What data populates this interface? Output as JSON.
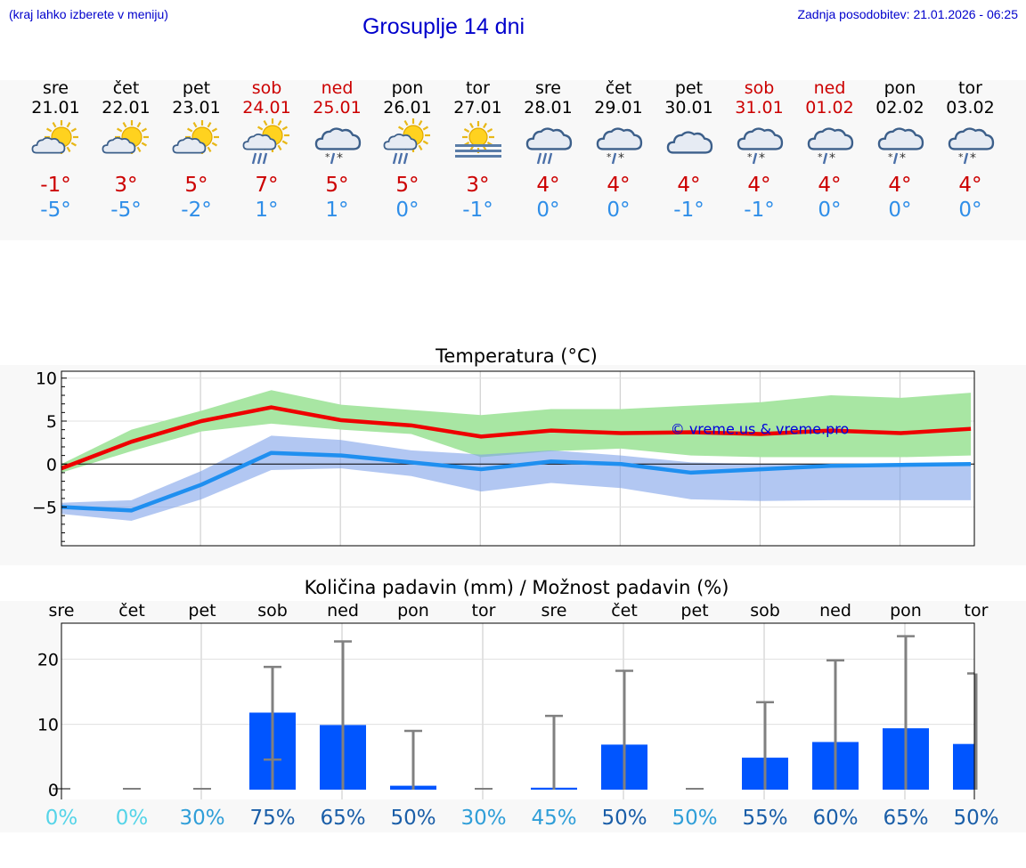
{
  "header": {
    "note": "(kraj lahko izberete v meniju)",
    "title": "Grosuplje 14 dni",
    "updated": "Zadnja posodobitev: 21.01.2026 - 06:25"
  },
  "days": [
    {
      "name": "sre",
      "date": "21.01",
      "max": "-1°",
      "min": "-5°",
      "icon": "sun-cloud",
      "weekend": false
    },
    {
      "name": "čet",
      "date": "22.01",
      "max": "3°",
      "min": "-5°",
      "icon": "sun-cloud",
      "weekend": false
    },
    {
      "name": "pet",
      "date": "23.01",
      "max": "5°",
      "min": "-2°",
      "icon": "sun-cloud",
      "weekend": false
    },
    {
      "name": "sob",
      "date": "24.01",
      "max": "7°",
      "min": "1°",
      "icon": "sun-cloud-rain",
      "weekend": true
    },
    {
      "name": "ned",
      "date": "25.01",
      "max": "5°",
      "min": "1°",
      "icon": "cloud-sleet",
      "weekend": true
    },
    {
      "name": "pon",
      "date": "26.01",
      "max": "5°",
      "min": "0°",
      "icon": "sun-cloud-rain",
      "weekend": false
    },
    {
      "name": "tor",
      "date": "27.01",
      "max": "3°",
      "min": "-1°",
      "icon": "sun-fog",
      "weekend": false
    },
    {
      "name": "sre",
      "date": "28.01",
      "max": "4°",
      "min": "0°",
      "icon": "cloud-rain",
      "weekend": false
    },
    {
      "name": "čet",
      "date": "29.01",
      "max": "4°",
      "min": "0°",
      "icon": "cloud-sleet",
      "weekend": false
    },
    {
      "name": "pet",
      "date": "30.01",
      "max": "4°",
      "min": "-1°",
      "icon": "cloud",
      "weekend": false
    },
    {
      "name": "sob",
      "date": "31.01",
      "max": "4°",
      "min": "-1°",
      "icon": "cloud-sleet",
      "weekend": true
    },
    {
      "name": "ned",
      "date": "01.02",
      "max": "4°",
      "min": "0°",
      "icon": "cloud-sleet",
      "weekend": true
    },
    {
      "name": "pon",
      "date": "02.02",
      "max": "4°",
      "min": "0°",
      "icon": "cloud-sleet",
      "weekend": false
    },
    {
      "name": "tor",
      "date": "03.02",
      "max": "4°",
      "min": "0°",
      "icon": "cloud-sleet",
      "weekend": false
    }
  ],
  "colors": {
    "max": "#cc0000",
    "min": "#2f8ee8",
    "maxLine": "#ee0000",
    "minLine": "#1f8ff0",
    "maxBand": "#a8e6a3",
    "minBand": "#a8c2f0",
    "overlap": "#7ec8a8",
    "bar": "#0055ff",
    "whisker": "#808080"
  },
  "chart_data": [
    {
      "type": "line",
      "title": "Temperatura (°C)",
      "watermark": "© vreme.us & vreme.pro",
      "x": [
        0,
        1,
        2,
        3,
        4,
        5,
        6,
        7,
        8,
        9,
        10,
        11,
        12,
        13
      ],
      "ylim": [
        -9.5,
        10.8
      ],
      "yticks": [
        10,
        5,
        0,
        -5
      ],
      "yticklabels": [
        "10",
        "5",
        "0",
        "−5"
      ],
      "series": [
        {
          "name": "max",
          "values": [
            -0.5,
            2.6,
            5.0,
            6.6,
            5.1,
            4.5,
            3.2,
            3.9,
            3.6,
            3.7,
            3.5,
            3.9,
            3.6,
            4.1
          ],
          "band_low": [
            -1.0,
            1.5,
            3.8,
            4.7,
            4.0,
            3.5,
            0.8,
            1.5,
            1.8,
            1.0,
            0.8,
            0.8,
            0.8,
            1.0
          ],
          "band_high": [
            0.0,
            4.0,
            6.2,
            8.6,
            6.9,
            6.3,
            5.7,
            6.4,
            6.4,
            6.8,
            7.2,
            8.0,
            7.7,
            8.3
          ]
        },
        {
          "name": "min",
          "values": [
            -5.0,
            -5.4,
            -2.4,
            1.3,
            1.0,
            0.2,
            -0.6,
            0.3,
            0.0,
            -1.0,
            -0.6,
            -0.2,
            -0.1,
            0.0
          ],
          "band_low": [
            -5.8,
            -6.6,
            -4.1,
            -0.7,
            -0.5,
            -1.4,
            -3.2,
            -2.2,
            -2.8,
            -4.1,
            -4.3,
            -4.2,
            -4.2,
            -4.2
          ],
          "band_high": [
            -4.5,
            -4.2,
            -0.8,
            3.3,
            2.8,
            1.6,
            1.1,
            1.6,
            1.0,
            0.2,
            0.0,
            0.0,
            0.0,
            0.0
          ]
        }
      ]
    },
    {
      "type": "bar",
      "title": "Količina padavin (mm) / Možnost padavin (%)",
      "categories": [
        "sre",
        "čet",
        "pet",
        "sob",
        "ned",
        "pon",
        "tor",
        "sre",
        "čet",
        "pet",
        "sob",
        "ned",
        "pon",
        "tor"
      ],
      "values": [
        0,
        0,
        0,
        11.8,
        9.9,
        0.6,
        0,
        0.3,
        6.9,
        0,
        4.9,
        7.3,
        9.4,
        7.0
      ],
      "err_low": [
        0,
        0,
        0,
        4.6,
        0,
        0,
        0,
        0,
        0,
        0,
        0,
        0,
        0,
        0
      ],
      "err_high": [
        0,
        0,
        0,
        18.8,
        22.7,
        9.0,
        0,
        11.3,
        18.2,
        0,
        13.4,
        19.8,
        23.5,
        17.8
      ],
      "ylim": [
        -1.5,
        25.5
      ],
      "yticks": [
        20,
        10,
        0
      ],
      "yticklabels": [
        "20",
        "10",
        "0"
      ],
      "probability": [
        "0%",
        "0%",
        "30%",
        "75%",
        "65%",
        "50%",
        "30%",
        "45%",
        "50%",
        "50%",
        "55%",
        "60%",
        "65%",
        "50%"
      ],
      "probability_colors": [
        "#55d4e8",
        "#55d4e8",
        "#2f9ed8",
        "#1a5ea8",
        "#1a5ea8",
        "#1a5ea8",
        "#2f9ed8",
        "#2f9ed8",
        "#1a5ea8",
        "#2f9ed8",
        "#1a5ea8",
        "#1a5ea8",
        "#1a5ea8",
        "#1a5ea8"
      ]
    }
  ]
}
